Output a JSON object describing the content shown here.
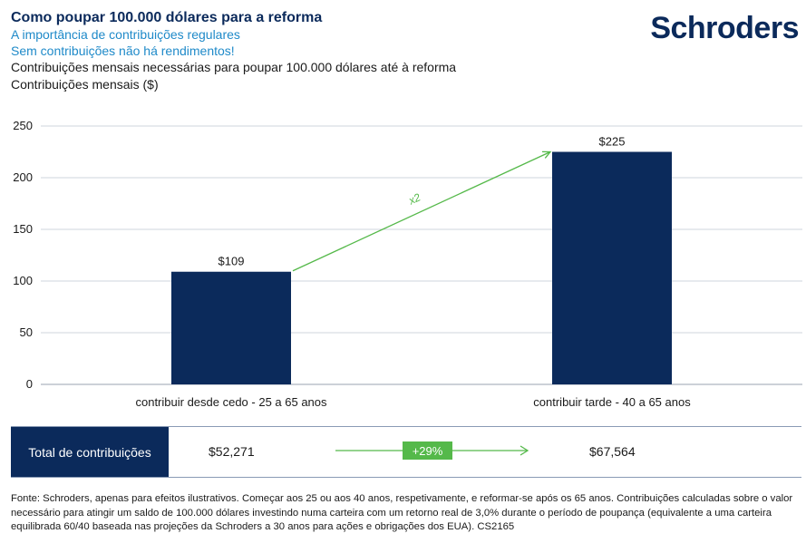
{
  "header": {
    "title": "Como poupar 100.000 dólares para a reforma",
    "subtitle1": "A importância de contribuições regulares",
    "subtitle2": "Sem contribuições não há rendimentos!",
    "description": "Contribuições mensais necessárias para poupar 100.000 dólares até à reforma",
    "axis_caption": "Contribuições mensais ($)"
  },
  "logo": {
    "text": "Schroders"
  },
  "colors": {
    "bar": "#0b2a5b",
    "accent_green": "#55b94a",
    "title": "#0b2a5b",
    "subtitle": "#1f8ac9",
    "grid": "#cfd4dc"
  },
  "chart_data": {
    "type": "bar",
    "categories": [
      "contribuir desde cedo - 25 a 65 anos",
      "contribuir tarde - 40 a 65 anos"
    ],
    "values": [
      109,
      225
    ],
    "data_labels": [
      "$109",
      "$225"
    ],
    "title": "Contribuições mensais necessárias para poupar 100.000 dólares até à reforma",
    "ylabel": "Contribuições mensais ($)",
    "ylim": [
      0,
      250
    ],
    "yticks": [
      0,
      50,
      100,
      150,
      200,
      250
    ],
    "grid": true,
    "annotation": "x2"
  },
  "totals": {
    "label": "Total de contribuições",
    "early": "$52,271",
    "late": "$67,564",
    "change": "+29%"
  },
  "footer": {
    "text": "Fonte: Schroders, apenas para efeitos ilustrativos. Começar aos 25 ou aos 40 anos, respetivamente, e reformar-se após os 65 anos. Contribuições calculadas sobre o valor necessário para atingir um saldo de 100.000 dólares investindo numa carteira com um retorno real de 3,0% durante o período de poupança (equivalente a uma carteira equilibrada 60/40 baseada nas projeções da Schroders a 30 anos para ações e obrigações dos EUA). CS2165"
  }
}
